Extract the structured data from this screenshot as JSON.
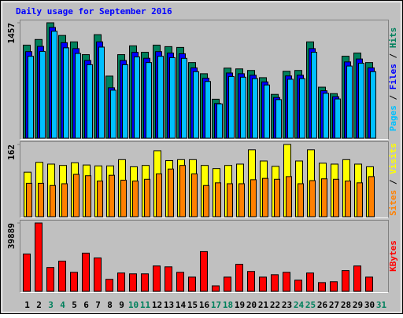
{
  "chart_data": [
    {
      "type": "bar",
      "title": "Daily usage for September 2016",
      "separator": " / ",
      "ylim": [
        0,
        1457
      ],
      "yticks": [
        1457
      ],
      "series": [
        {
          "name": "Hits",
          "color": "#00805c",
          "values": [
            1175,
            1246,
            1457,
            1297,
            1216,
            1055,
            1307,
            784,
            1055,
            1166,
            1085,
            1175,
            1156,
            1146,
            955,
            814,
            492,
            885,
            875,
            855,
            764,
            553,
            845,
            855,
            1216,
            644,
            563,
            1035,
            1075,
            955,
            0
          ]
        },
        {
          "name": "Files",
          "color": "#0000ff",
          "values": [
            1093,
            1159,
            1398,
            1206,
            1131,
            981,
            1216,
            636,
            981,
            1084,
            1009,
            1093,
            1075,
            1066,
            888,
            757,
            438,
            823,
            814,
            795,
            711,
            514,
            786,
            795,
            1131,
            599,
            524,
            963,
            1000,
            888,
            0
          ]
        },
        {
          "name": "Pages",
          "color": "#00c0ff",
          "values": [
            1034,
            1096,
            1350,
            1141,
            1070,
            928,
            1150,
            606,
            928,
            1026,
            955,
            1034,
            1017,
            1008,
            840,
            716,
            433,
            779,
            770,
            752,
            672,
            487,
            744,
            752,
            1085,
            567,
            495,
            911,
            946,
            840,
            0
          ]
        }
      ]
    },
    {
      "type": "bar",
      "separator": " / ",
      "ylim": [
        0,
        162
      ],
      "yticks": [
        162
      ],
      "series": [
        {
          "name": "Visits",
          "color": "#ffff00",
          "values": [
            100,
            122,
            118,
            115,
            121,
            116,
            114,
            114,
            128,
            112,
            115,
            148,
            126,
            128,
            128,
            115,
            108,
            115,
            118,
            150,
            125,
            113,
            162,
            125,
            150,
            120,
            118,
            128,
            118,
            112,
            0
          ]
        },
        {
          "name": "Sites",
          "color": "#ff8000",
          "values": [
            75,
            75,
            70,
            74,
            95,
            92,
            80,
            93,
            82,
            80,
            84,
            96,
            107,
            115,
            96,
            70,
            76,
            74,
            74,
            83,
            86,
            84,
            90,
            74,
            81,
            85,
            84,
            80,
            76,
            90,
            0
          ]
        }
      ]
    },
    {
      "type": "bar",
      "ylim": [
        0,
        39889
      ],
      "yticks": [
        39889
      ],
      "categories": [
        "1",
        "2",
        "3",
        "4",
        "5",
        "6",
        "7",
        "8",
        "9",
        "10",
        "11",
        "12",
        "13",
        "14",
        "15",
        "16",
        "17",
        "18",
        "19",
        "20",
        "21",
        "22",
        "23",
        "24",
        "25",
        "26",
        "27",
        "28",
        "29",
        "30",
        "31"
      ],
      "category_colors": [
        "#000000",
        "#000000",
        "#00805c",
        "#00805c",
        "#000000",
        "#000000",
        "#000000",
        "#000000",
        "#000000",
        "#00805c",
        "#00805c",
        "#000000",
        "#000000",
        "#000000",
        "#000000",
        "#000000",
        "#00805c",
        "#00805c",
        "#000000",
        "#000000",
        "#000000",
        "#000000",
        "#000000",
        "#00805c",
        "#00805c",
        "#000000",
        "#000000",
        "#000000",
        "#000000",
        "#000000",
        "#00805c"
      ],
      "series": [
        {
          "name": "KBytes",
          "color": "#ff0000",
          "values": [
            21800,
            39889,
            13900,
            17600,
            11100,
            22300,
            19500,
            7000,
            10700,
            10200,
            10200,
            14800,
            14300,
            11100,
            8300,
            23200,
            3200,
            8300,
            15800,
            11600,
            8300,
            9700,
            11100,
            6500,
            10700,
            5100,
            5600,
            12100,
            14800,
            8300,
            0
          ]
        }
      ]
    }
  ]
}
